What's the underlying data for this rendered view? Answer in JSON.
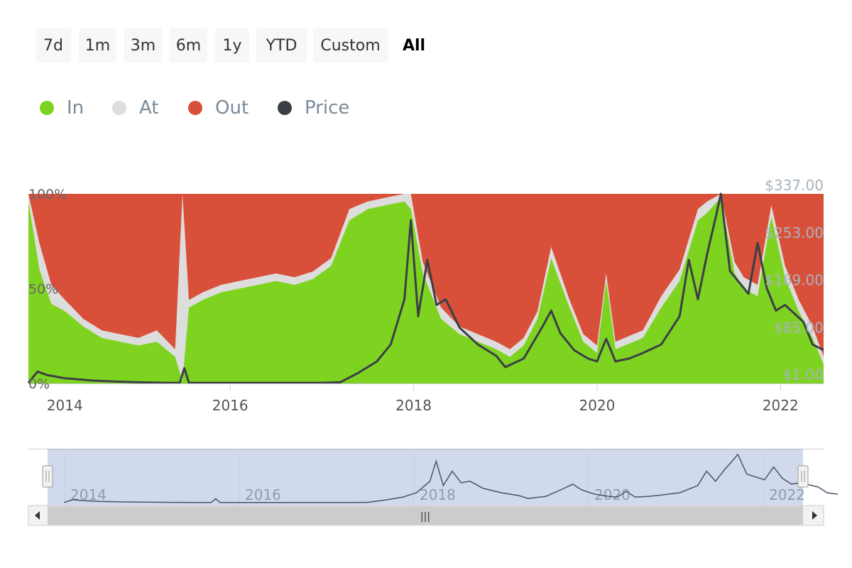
{
  "range_selector": {
    "buttons": [
      "7d",
      "1m",
      "3m",
      "6m",
      "1y",
      "YTD",
      "Custom",
      "All"
    ],
    "selected": "All"
  },
  "legend": [
    {
      "name": "In",
      "color": "#7ed321"
    },
    {
      "name": "At",
      "color": "#dddddd"
    },
    {
      "name": "Out",
      "color": "#d9503a"
    },
    {
      "name": "Price",
      "color": "#3b3f45"
    }
  ],
  "chart_data": {
    "type": "area",
    "stacked_percent": true,
    "x_tick_labels": [
      "2014",
      "2016",
      "2018",
      "2020",
      "2022"
    ],
    "xlim": [
      2013.8,
      2022.47
    ],
    "y_left_ticks": [
      "0%",
      "50%",
      "100%"
    ],
    "y_right_ticks": [
      "$1.00",
      "$85.00",
      "$169.00",
      "$253.00",
      "$337.00"
    ],
    "y_right_lim": [
      1,
      337
    ],
    "grid": false,
    "legend_position": "top-left",
    "series": [
      {
        "name": "In",
        "unit": "%",
        "x": [
          2013.8,
          2013.92,
          2014.05,
          2014.2,
          2014.4,
          2014.6,
          2014.8,
          2015.0,
          2015.2,
          2015.4,
          2015.48,
          2015.55,
          2015.7,
          2015.9,
          2016.1,
          2016.3,
          2016.5,
          2016.7,
          2016.9,
          2017.1,
          2017.3,
          2017.5,
          2017.7,
          2017.9,
          2017.97,
          2018.1,
          2018.3,
          2018.5,
          2018.7,
          2018.9,
          2019.05,
          2019.2,
          2019.35,
          2019.5,
          2019.7,
          2019.85,
          2020.0,
          2020.1,
          2020.2,
          2020.3,
          2020.5,
          2020.7,
          2020.9,
          2021.1,
          2021.2,
          2021.35,
          2021.5,
          2021.6,
          2021.75,
          2021.9,
          2022.05,
          2022.2,
          2022.35,
          2022.47
        ],
        "values": [
          96,
          60,
          42,
          38,
          30,
          24,
          22,
          20,
          22,
          14,
          1,
          40,
          44,
          48,
          50,
          52,
          54,
          52,
          55,
          62,
          86,
          92,
          94,
          96,
          92,
          58,
          34,
          26,
          22,
          18,
          14,
          20,
          34,
          66,
          40,
          22,
          16,
          54,
          18,
          20,
          24,
          40,
          54,
          86,
          90,
          98,
          58,
          50,
          46,
          88,
          56,
          38,
          24,
          10
        ]
      },
      {
        "name": "At",
        "unit": "%",
        "x": [
          2013.8,
          2013.92,
          2014.05,
          2014.2,
          2014.4,
          2014.6,
          2014.8,
          2015.0,
          2015.2,
          2015.4,
          2015.48,
          2015.55,
          2015.7,
          2015.9,
          2016.1,
          2016.3,
          2016.5,
          2016.7,
          2016.9,
          2017.1,
          2017.3,
          2017.5,
          2017.7,
          2017.9,
          2017.97,
          2018.1,
          2018.3,
          2018.5,
          2018.7,
          2018.9,
          2019.05,
          2019.2,
          2019.35,
          2019.5,
          2019.7,
          2019.85,
          2020.0,
          2020.1,
          2020.2,
          2020.3,
          2020.5,
          2020.7,
          2020.9,
          2021.1,
          2021.2,
          2021.35,
          2021.5,
          2021.6,
          2021.75,
          2021.9,
          2022.05,
          2022.2,
          2022.35,
          2022.47
        ],
        "values": [
          4,
          14,
          10,
          6,
          4,
          4,
          4,
          4,
          6,
          4,
          99,
          4,
          4,
          4,
          4,
          4,
          4,
          4,
          4,
          4,
          6,
          4,
          4,
          4,
          8,
          6,
          6,
          4,
          4,
          4,
          4,
          4,
          4,
          6,
          4,
          4,
          4,
          4,
          4,
          4,
          4,
          6,
          6,
          6,
          6,
          2,
          6,
          6,
          6,
          6,
          6,
          6,
          6,
          4
        ]
      },
      {
        "name": "Out",
        "unit": "%",
        "x": [
          2013.8,
          2013.92,
          2014.05,
          2014.2,
          2014.4,
          2014.6,
          2014.8,
          2015.0,
          2015.2,
          2015.4,
          2015.48,
          2015.55,
          2015.7,
          2015.9,
          2016.1,
          2016.3,
          2016.5,
          2016.7,
          2016.9,
          2017.1,
          2017.3,
          2017.5,
          2017.7,
          2017.9,
          2017.97,
          2018.1,
          2018.3,
          2018.5,
          2018.7,
          2018.9,
          2019.05,
          2019.2,
          2019.35,
          2019.5,
          2019.7,
          2019.85,
          2020.0,
          2020.1,
          2020.2,
          2020.3,
          2020.5,
          2020.7,
          2020.9,
          2021.1,
          2021.2,
          2021.35,
          2021.5,
          2021.6,
          2021.75,
          2021.9,
          2022.05,
          2022.2,
          2022.35,
          2022.47
        ],
        "values": [
          0,
          26,
          48,
          56,
          66,
          72,
          74,
          76,
          72,
          82,
          0,
          56,
          52,
          48,
          46,
          44,
          42,
          44,
          41,
          34,
          8,
          4,
          2,
          0,
          0,
          36,
          60,
          70,
          74,
          78,
          82,
          76,
          62,
          28,
          56,
          74,
          80,
          42,
          78,
          76,
          72,
          54,
          40,
          8,
          4,
          0,
          36,
          44,
          48,
          6,
          38,
          56,
          70,
          86
        ]
      },
      {
        "name": "Price",
        "unit": "$",
        "axis": "right",
        "x": [
          2013.8,
          2013.9,
          2014.0,
          2014.2,
          2014.5,
          2014.8,
          2015.0,
          2015.3,
          2015.45,
          2015.5,
          2015.55,
          2016.0,
          2016.5,
          2017.0,
          2017.2,
          2017.4,
          2017.6,
          2017.75,
          2017.9,
          2017.97,
          2018.05,
          2018.15,
          2018.25,
          2018.35,
          2018.5,
          2018.7,
          2018.9,
          2019.0,
          2019.2,
          2019.4,
          2019.5,
          2019.6,
          2019.75,
          2019.9,
          2020.0,
          2020.1,
          2020.2,
          2020.35,
          2020.5,
          2020.7,
          2020.9,
          2021.0,
          2021.1,
          2021.2,
          2021.3,
          2021.35,
          2021.45,
          2021.55,
          2021.65,
          2021.75,
          2021.85,
          2021.95,
          2022.05,
          2022.15,
          2022.25,
          2022.35,
          2022.47
        ],
        "values": [
          2,
          22,
          16,
          10,
          6,
          4,
          3,
          2,
          2,
          28,
          2,
          2,
          2,
          2,
          3,
          20,
          40,
          70,
          150,
          290,
          120,
          220,
          140,
          150,
          100,
          70,
          50,
          30,
          45,
          100,
          130,
          90,
          60,
          45,
          40,
          80,
          40,
          45,
          55,
          70,
          120,
          220,
          150,
          230,
          300,
          337,
          200,
          180,
          160,
          250,
          170,
          130,
          140,
          125,
          110,
          70,
          60
        ]
      }
    ]
  },
  "navigator": {
    "x_tick_labels": [
      "2014",
      "2016",
      "2018",
      "2020",
      "2022"
    ],
    "scrollbar_grip": "|||"
  }
}
